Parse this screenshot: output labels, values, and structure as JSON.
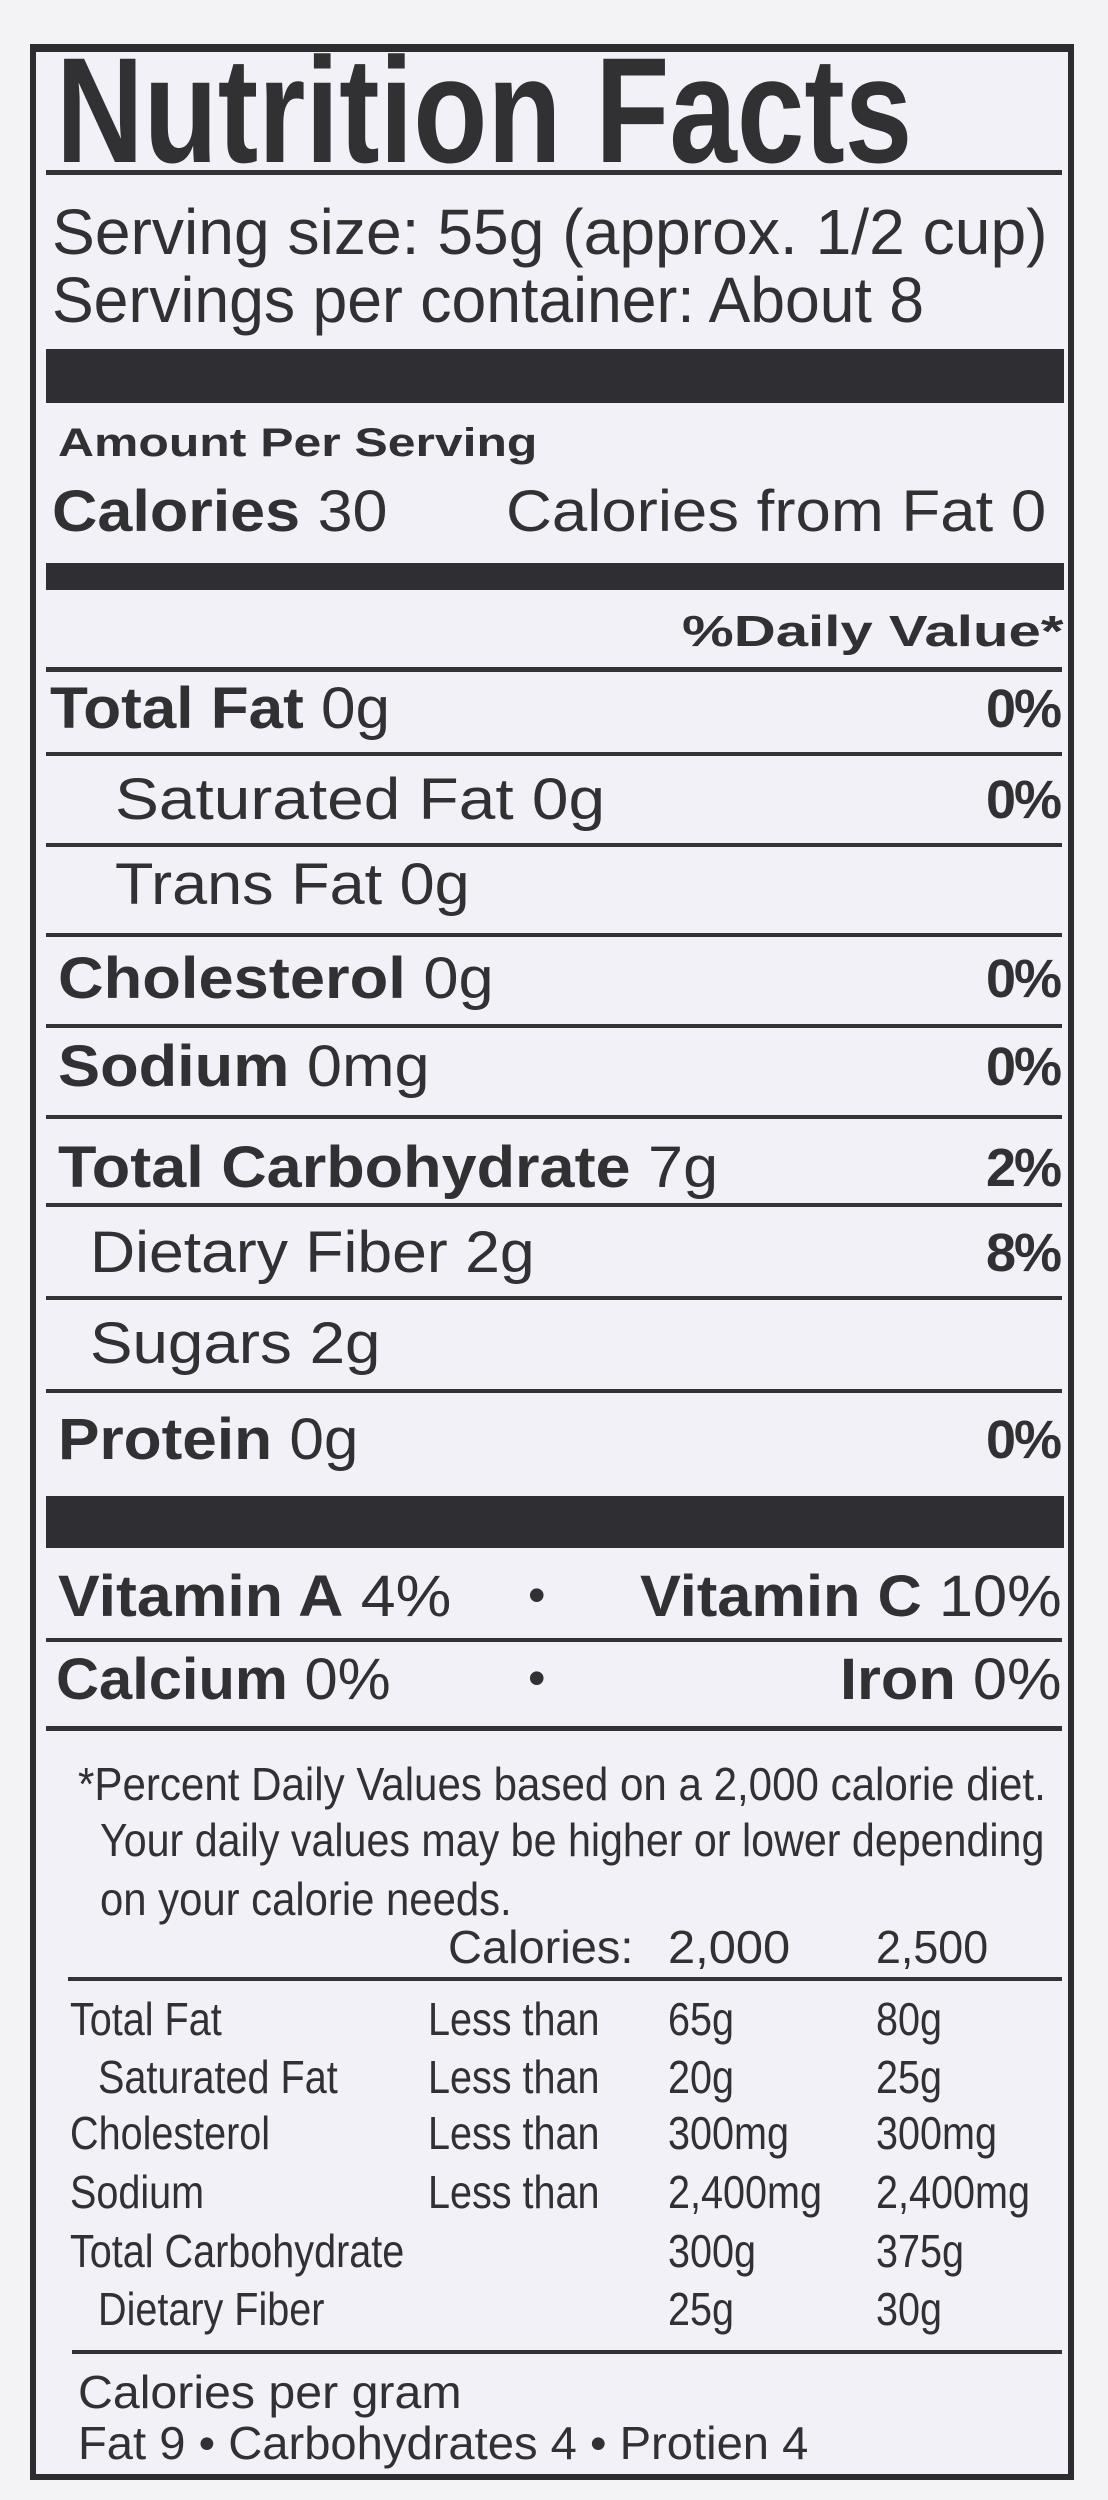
{
  "header": {
    "title": "Nutrition Facts",
    "serving_size": "Serving size:   55g (approx. 1/2 cup)",
    "servings_per_container": "Servings per container: About 8"
  },
  "calories": {
    "amount_per_serving": "Amount Per Serving",
    "calories_label": "Calories",
    "calories_value": "30",
    "from_fat": "Calories from Fat  0",
    "daily_value_header": "%Daily Value*"
  },
  "nutrients": [
    {
      "label": "Total Fat",
      "amount": "0g",
      "dv": "0%"
    },
    {
      "label": "Saturated Fat",
      "amount": "0g",
      "dv": "0%"
    },
    {
      "label": "Trans Fat",
      "amount": "0g",
      "dv": ""
    },
    {
      "label": "Cholesterol",
      "amount": "0g",
      "dv": "0%"
    },
    {
      "label": "Sodium",
      "amount": "0mg",
      "dv": "0%"
    },
    {
      "label": "Total Carbohydrate",
      "amount": "7g",
      "dv": "2%"
    },
    {
      "label": "Dietary Fiber",
      "amount": "2g",
      "dv": "8%"
    },
    {
      "label": "Sugars",
      "amount": "2g",
      "dv": ""
    },
    {
      "label": "Protein",
      "amount": "0g",
      "dv": "0%"
    }
  ],
  "vitamins": [
    {
      "label": "Vitamin A",
      "value": "4%"
    },
    {
      "label": "Vitamin C",
      "value": "10%"
    },
    {
      "label": "Calcium",
      "value": "0%"
    },
    {
      "label": "Iron",
      "value": "0%"
    }
  ],
  "separator": "•",
  "footnote": {
    "line1": "*Percent Daily Values based on a 2,000 calorie diet.",
    "line2": "Your daily values may be higher or lower depending",
    "line3": "on your calorie needs.",
    "calories_header": "Calories:",
    "col1": "2,000",
    "col2": "2,500",
    "rows": [
      {
        "label": "Total Fat",
        "qualifier": "Less than",
        "v1": "65g",
        "v2": "80g"
      },
      {
        "label": "Saturated Fat",
        "qualifier": "Less than",
        "v1": "20g",
        "v2": "25g"
      },
      {
        "label": "Cholesterol",
        "qualifier": "Less than",
        "v1": "300mg",
        "v2": "300mg"
      },
      {
        "label": "Sodium",
        "qualifier": "Less than",
        "v1": "2,400mg",
        "v2": "2,400mg"
      },
      {
        "label": "Total Carbohydrate",
        "qualifier": "",
        "v1": "300g",
        "v2": "375g"
      },
      {
        "label": "Dietary Fiber",
        "qualifier": "",
        "v1": "25g",
        "v2": "30g"
      }
    ],
    "calories_per_gram": "Calories per gram",
    "per_gram_values": "Fat 9 • Carbohydrates 4 • Protien 4"
  }
}
